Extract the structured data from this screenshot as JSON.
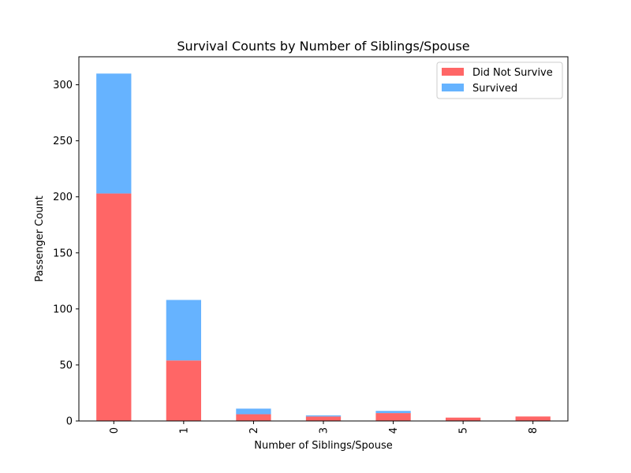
{
  "chart_data": {
    "type": "bar",
    "stacked": true,
    "title": "Survival Counts by Number of Siblings/Spouse",
    "xlabel": "Number of Siblings/Spouse",
    "ylabel": "Passenger Count",
    "categories": [
      "0",
      "1",
      "2",
      "3",
      "4",
      "5",
      "8"
    ],
    "series": [
      {
        "name": "Did Not Survive",
        "color": "#ff6666",
        "values": [
          203,
          54,
          6,
          4,
          7,
          3,
          4
        ]
      },
      {
        "name": "Survived",
        "color": "#66b3ff",
        "values": [
          107,
          54,
          5,
          1,
          2,
          0,
          0
        ]
      }
    ],
    "ylim": [
      0,
      325
    ],
    "yticks": [
      0,
      50,
      100,
      150,
      200,
      250,
      300
    ],
    "grid": false,
    "legend": "top-right"
  }
}
